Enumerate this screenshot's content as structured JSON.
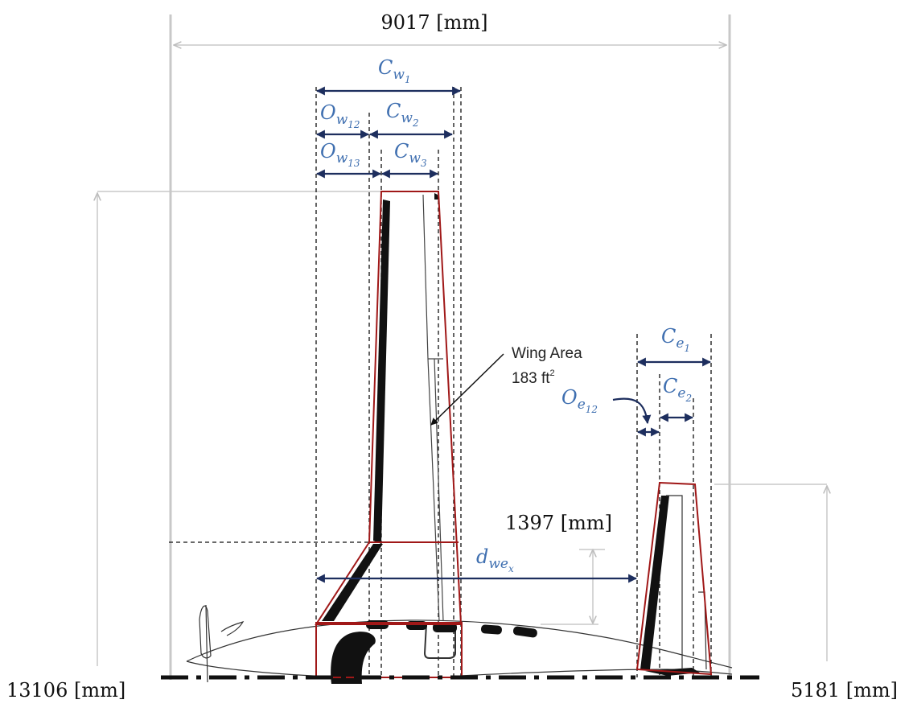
{
  "dims": {
    "total_width": "9017 [mm]",
    "left_height": "13106 [mm]",
    "right_height": "5181 [mm]",
    "vertical_offset": "1397 [mm]"
  },
  "labels": {
    "cw1": {
      "base": "C",
      "sub": "w",
      "subsub": "1"
    },
    "cw2": {
      "base": "C",
      "sub": "w",
      "subsub": "2"
    },
    "cw3": {
      "base": "C",
      "sub": "w",
      "subsub": "3"
    },
    "ow12": {
      "base": "O",
      "sub": "w",
      "subsub": "12"
    },
    "ow13": {
      "base": "O",
      "sub": "w",
      "subsub": "13"
    },
    "ce1": {
      "base": "C",
      "sub": "e",
      "subsub": "1"
    },
    "ce2": {
      "base": "C",
      "sub": "e",
      "subsub": "2"
    },
    "oe12": {
      "base": "O",
      "sub": "e",
      "subsub": "12"
    },
    "dwex": {
      "base": "d",
      "sub": "we",
      "subsub": "x"
    }
  },
  "callout": {
    "line1": "Wing Area",
    "line2": "183 ft",
    "sup": "2"
  },
  "colors": {
    "label_blue": "#3f6fb0",
    "arrow_navy": "#1d2e5e",
    "outline_red": "#a01818",
    "gray_line": "#c8c8c8"
  }
}
